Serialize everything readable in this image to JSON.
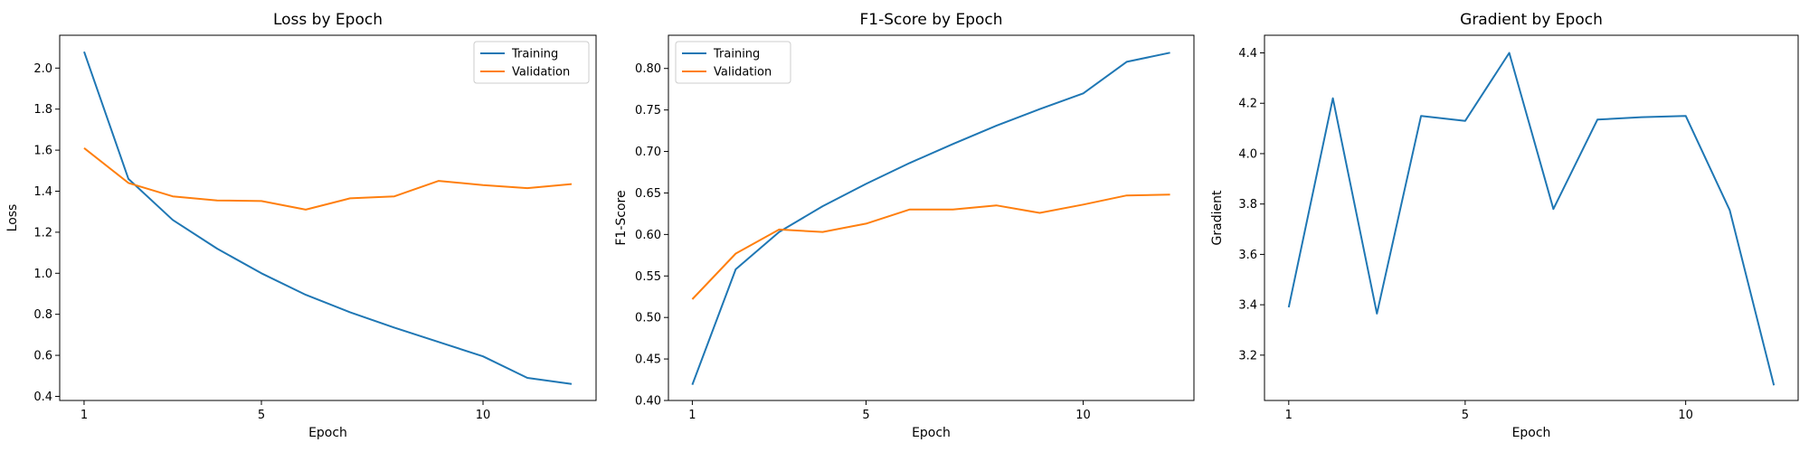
{
  "colors": {
    "training": "#1f77b4",
    "validation": "#ff7f0e",
    "axes": "#000000",
    "background": "#ffffff"
  },
  "chart_data": [
    {
      "type": "line",
      "title": "Loss by Epoch",
      "xlabel": "Epoch",
      "ylabel": "Loss",
      "x": [
        1,
        2,
        3,
        4,
        5,
        6,
        7,
        8,
        9,
        10,
        11,
        12
      ],
      "xlim": [
        0.45,
        12.55
      ],
      "ylim": [
        0.38,
        2.16
      ],
      "xticks": [
        1,
        5,
        10
      ],
      "yticks": [
        0.4,
        0.6,
        0.8,
        1.0,
        1.2,
        1.4,
        1.6,
        1.8,
        2.0
      ],
      "ytick_format": 1,
      "grid": false,
      "legend": "top-right",
      "series": [
        {
          "name": "Training",
          "color": "#1f77b4",
          "values": [
            2.08,
            1.46,
            1.26,
            1.12,
            1.0,
            0.895,
            0.81,
            0.735,
            0.665,
            0.595,
            0.49,
            0.46
          ]
        },
        {
          "name": "Validation",
          "color": "#ff7f0e",
          "values": [
            1.61,
            1.44,
            1.375,
            1.355,
            1.352,
            1.31,
            1.365,
            1.375,
            1.45,
            1.43,
            1.415,
            1.435
          ]
        }
      ]
    },
    {
      "type": "line",
      "title": "F1-Score by Epoch",
      "xlabel": "Epoch",
      "ylabel": "F1-Score",
      "x": [
        1,
        2,
        3,
        4,
        5,
        6,
        7,
        8,
        9,
        10,
        11,
        12
      ],
      "xlim": [
        0.45,
        12.55
      ],
      "ylim": [
        0.4,
        0.84
      ],
      "xticks": [
        1,
        5,
        10
      ],
      "yticks": [
        0.4,
        0.45,
        0.5,
        0.55,
        0.6,
        0.65,
        0.7,
        0.75,
        0.8
      ],
      "ytick_format": 2,
      "grid": false,
      "legend": "top-left",
      "series": [
        {
          "name": "Training",
          "color": "#1f77b4",
          "values": [
            0.419,
            0.558,
            0.603,
            0.634,
            0.661,
            0.686,
            0.709,
            0.731,
            0.751,
            0.77,
            0.808,
            0.819
          ]
        },
        {
          "name": "Validation",
          "color": "#ff7f0e",
          "values": [
            0.522,
            0.577,
            0.606,
            0.603,
            0.613,
            0.63,
            0.63,
            0.635,
            0.626,
            0.636,
            0.647,
            0.648
          ]
        }
      ]
    },
    {
      "type": "line",
      "title": "Gradient by Epoch",
      "xlabel": "Epoch",
      "ylabel": "Gradient",
      "x": [
        1,
        2,
        3,
        4,
        5,
        6,
        7,
        8,
        9,
        10,
        11,
        12
      ],
      "xlim": [
        0.45,
        12.55
      ],
      "ylim": [
        3.02,
        4.47
      ],
      "xticks": [
        1,
        5,
        10
      ],
      "yticks": [
        3.2,
        3.4,
        3.6,
        3.8,
        4.0,
        4.2,
        4.4
      ],
      "ytick_format": 1,
      "grid": false,
      "legend": "none",
      "series": [
        {
          "color": "#1f77b4",
          "values": [
            3.39,
            4.22,
            3.365,
            4.15,
            4.13,
            4.4,
            3.78,
            4.135,
            4.145,
            4.15,
            3.775,
            3.08
          ]
        }
      ]
    }
  ]
}
